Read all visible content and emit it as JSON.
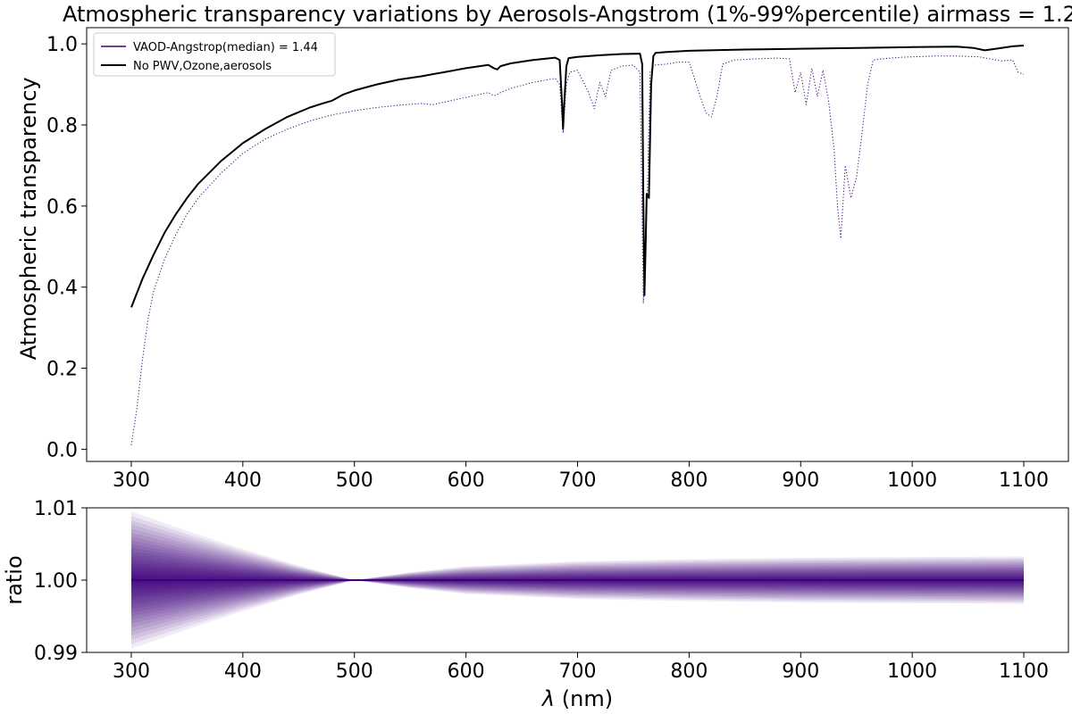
{
  "title": "Atmospheric transparency variations by Aerosols-Angstrom (1%-99%percentile) airmass = 1.2",
  "colors": {
    "median": "#3f007d",
    "reference": "#000000",
    "background": "#ffffff",
    "axes": "#000000"
  },
  "chart_data": [
    {
      "type": "line",
      "ylabel": "Atmospheric transparency",
      "xlabel": "",
      "xlim": [
        260,
        1140
      ],
      "ylim": [
        -0.03,
        1.04
      ],
      "xticks": [
        300,
        400,
        500,
        600,
        700,
        800,
        900,
        1000,
        1100
      ],
      "xtick_labels": [
        "300",
        "400",
        "500",
        "600",
        "700",
        "800",
        "900",
        "1000",
        "1100"
      ],
      "yticks": [
        0.0,
        0.2,
        0.4,
        0.6,
        0.8,
        1.0
      ],
      "ytick_labels": [
        "0.0",
        "0.2",
        "0.4",
        "0.6",
        "0.8",
        "1.0"
      ],
      "legend_position": "top-left",
      "series": [
        {
          "name": "VAOD-Angstrop(median) = 1.44",
          "style": "dotted",
          "x": [
            300,
            305,
            310,
            315,
            320,
            330,
            340,
            350,
            360,
            380,
            400,
            420,
            440,
            460,
            480,
            500,
            520,
            540,
            560,
            570,
            580,
            600,
            620,
            625,
            628,
            631,
            640,
            660,
            680,
            684,
            687,
            690,
            693,
            700,
            710,
            715,
            720,
            725,
            730,
            740,
            750,
            756,
            759,
            761,
            763,
            765,
            768,
            770,
            780,
            790,
            800,
            810,
            815,
            820,
            825,
            830,
            840,
            860,
            880,
            890,
            895,
            900,
            905,
            910,
            915,
            920,
            925,
            930,
            933,
            936,
            940,
            945,
            950,
            955,
            960,
            965,
            970,
            980,
            990,
            1000,
            1020,
            1040,
            1060,
            1080,
            1090,
            1095,
            1100
          ],
          "y": [
            0.01,
            0.1,
            0.22,
            0.32,
            0.39,
            0.47,
            0.53,
            0.58,
            0.62,
            0.68,
            0.73,
            0.765,
            0.79,
            0.81,
            0.825,
            0.835,
            0.843,
            0.849,
            0.853,
            0.85,
            0.856,
            0.868,
            0.88,
            0.872,
            0.875,
            0.88,
            0.89,
            0.905,
            0.915,
            0.9,
            0.78,
            0.9,
            0.93,
            0.935,
            0.88,
            0.84,
            0.905,
            0.87,
            0.935,
            0.945,
            0.948,
            0.93,
            0.36,
            0.5,
            0.68,
            0.93,
            0.945,
            0.948,
            0.95,
            0.955,
            0.955,
            0.87,
            0.83,
            0.82,
            0.87,
            0.95,
            0.96,
            0.963,
            0.965,
            0.963,
            0.88,
            0.93,
            0.85,
            0.94,
            0.87,
            0.935,
            0.86,
            0.74,
            0.6,
            0.52,
            0.7,
            0.62,
            0.67,
            0.78,
            0.9,
            0.96,
            0.962,
            0.965,
            0.967,
            0.968,
            0.97,
            0.97,
            0.968,
            0.958,
            0.96,
            0.93,
            0.925
          ]
        },
        {
          "name": "No PWV,Ozone,aerosols",
          "style": "solid",
          "x": [
            300,
            310,
            320,
            330,
            340,
            350,
            360,
            380,
            400,
            420,
            440,
            460,
            470,
            480,
            490,
            500,
            520,
            540,
            560,
            570,
            580,
            600,
            620,
            625,
            628,
            631,
            640,
            660,
            680,
            684,
            686,
            687,
            688,
            690,
            692,
            700,
            720,
            740,
            756,
            758,
            759,
            760,
            761,
            762,
            764,
            766,
            768,
            770,
            780,
            800,
            850,
            900,
            950,
            1000,
            1040,
            1055,
            1065,
            1075,
            1090,
            1100
          ],
          "y": [
            0.35,
            0.42,
            0.48,
            0.535,
            0.58,
            0.62,
            0.655,
            0.71,
            0.755,
            0.79,
            0.82,
            0.843,
            0.852,
            0.86,
            0.875,
            0.885,
            0.9,
            0.912,
            0.92,
            0.925,
            0.93,
            0.94,
            0.948,
            0.94,
            0.937,
            0.945,
            0.952,
            0.96,
            0.966,
            0.96,
            0.86,
            0.79,
            0.85,
            0.945,
            0.965,
            0.968,
            0.972,
            0.975,
            0.976,
            0.95,
            0.6,
            0.38,
            0.5,
            0.63,
            0.62,
            0.9,
            0.97,
            0.978,
            0.98,
            0.983,
            0.986,
            0.988,
            0.99,
            0.992,
            0.993,
            0.99,
            0.984,
            0.988,
            0.994,
            0.996
          ]
        }
      ]
    },
    {
      "type": "area",
      "ylabel": "ratio",
      "xlabel": "λ (nm)",
      "xlabel_italic_symbol": "λ",
      "xlabel_unit": " (nm)",
      "xlim": [
        260,
        1140
      ],
      "ylim": [
        0.99,
        1.01
      ],
      "xticks": [
        300,
        400,
        500,
        600,
        700,
        800,
        900,
        1000,
        1100
      ],
      "xtick_labels": [
        "300",
        "400",
        "500",
        "600",
        "700",
        "800",
        "900",
        "1000",
        "1100"
      ],
      "yticks": [
        0.99,
        1.0,
        1.01
      ],
      "ytick_labels": [
        "0.99",
        "1.00",
        "1.01"
      ],
      "band_center": 1.0,
      "band_halfwidth_x": [
        300,
        350,
        400,
        450,
        500,
        550,
        600,
        700,
        800,
        900,
        1000,
        1100
      ],
      "band_halfwidth": [
        0.0095,
        0.0068,
        0.0043,
        0.002,
        0.0,
        0.0011,
        0.0019,
        0.0026,
        0.0029,
        0.0031,
        0.0032,
        0.0033
      ],
      "layers": 24
    }
  ]
}
